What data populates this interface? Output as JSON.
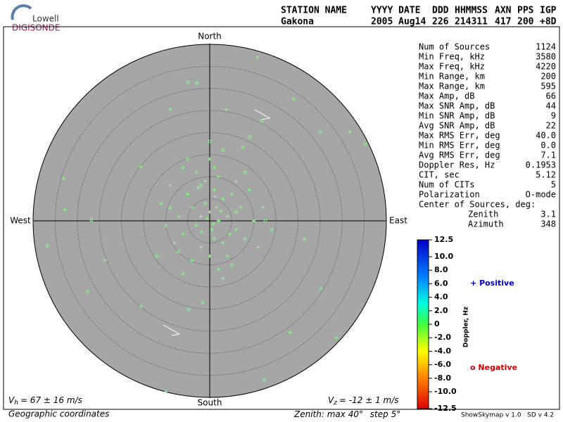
{
  "logo": {
    "top": "Lowell",
    "bottom": "DIGISONDE"
  },
  "header": {
    "labels": [
      "STATION NAME",
      "YYYY DATE",
      "DDD",
      "HHMMSS",
      "AXN",
      "PPS",
      "IGP"
    ],
    "values": [
      "Gakona",
      "2005 Aug14",
      "226",
      "214311",
      "417",
      "200",
      "+8D"
    ]
  },
  "compass": {
    "north": "North",
    "south": "South",
    "west": "West",
    "east": "East"
  },
  "stats": {
    "rows": [
      [
        "Num of Sources",
        "1124"
      ],
      [
        "Min Freq, kHz",
        "3580"
      ],
      [
        "Max Freq, kHz",
        "4220"
      ],
      [
        "Min Range, km",
        "200"
      ],
      [
        "Max Range, km",
        "595"
      ],
      [
        "Max Amp, dB",
        "66"
      ],
      [
        "Max SNR Amp, dB",
        "44"
      ],
      [
        "Min SNR Amp, dB",
        "9"
      ],
      [
        "Avg SNR Amp, dB",
        "22"
      ],
      [
        "Max RMS Err, deg",
        "40.0"
      ],
      [
        "Min RMS Err, deg",
        "0.0"
      ],
      [
        "Avg RMS Err, deg",
        "7.1"
      ],
      [
        "Doppler Res, Hz",
        "0.1953"
      ],
      [
        "CIT, sec",
        "5.12"
      ],
      [
        "Num of CITs",
        "5"
      ],
      [
        "Polarization",
        "O-mode"
      ]
    ],
    "center_title": "Center of Sources, deg:",
    "center_rows": [
      [
        "Zenith",
        "3.1"
      ],
      [
        "Azimuth",
        "348"
      ]
    ]
  },
  "colorbar": {
    "title": "Doppler, Hz",
    "ticks": [
      12.5,
      {
        "value": 10,
        "label": "10.0"
      },
      {
        "value": 8,
        "label": "8.0"
      },
      {
        "value": 6,
        "label": "6.0"
      },
      {
        "value": 4,
        "label": "4.0"
      },
      {
        "value": 2,
        "label": "2.0"
      },
      0,
      {
        "value": -2,
        "label": "-2.0"
      },
      {
        "value": -4,
        "label": "-4.0"
      },
      {
        "value": -6,
        "label": "-6.0"
      },
      {
        "value": -8,
        "label": "-8.0"
      },
      {
        "value": -10,
        "label": "-10.0"
      },
      -12.5
    ]
  },
  "legend": {
    "positive": "Positive",
    "negative": "Negative",
    "positive_symbol": "+",
    "negative_symbol": "o"
  },
  "footer": {
    "vh": {
      "symbol": "V",
      "sub": "h",
      "text": "= 67 ± 16 m/s"
    },
    "vz": {
      "symbol": "V",
      "sub": "z",
      "text": "= -12 ± 1 m/s"
    },
    "coords": "Geographic coordinates",
    "zenith": {
      "prefix": "Zenith: max",
      "max": 40,
      "unit": "°",
      "step_prefix": "step",
      "step": 5
    },
    "version": "ShowSkymap v 1.0   SD v 4.2"
  },
  "skymap": {
    "point_color": "#86ff86",
    "positive": [
      [
        0,
        2
      ],
      [
        1.5,
        3
      ],
      [
        -1,
        4
      ],
      [
        2,
        0
      ],
      [
        -2,
        1
      ],
      [
        3,
        5
      ],
      [
        -3,
        -1
      ],
      [
        0.5,
        -2
      ],
      [
        4,
        1
      ],
      [
        -4,
        3
      ],
      [
        1,
        7
      ],
      [
        -1,
        9
      ],
      [
        2,
        10
      ],
      [
        5,
        6
      ],
      [
        -5,
        6
      ],
      [
        6,
        -2
      ],
      [
        -6,
        -3
      ],
      [
        3,
        -5
      ],
      [
        -2,
        -6
      ],
      [
        0,
        -8
      ],
      [
        7,
        3
      ],
      [
        -7,
        1
      ],
      [
        8,
        -4
      ],
      [
        -8,
        -5
      ],
      [
        1,
        12
      ],
      [
        4,
        -8
      ],
      [
        -3,
        11
      ],
      [
        9,
        7
      ],
      [
        -9,
        8
      ],
      [
        10,
        0
      ],
      [
        -10,
        -1
      ],
      [
        2,
        -11
      ],
      [
        -4,
        -9
      ],
      [
        6,
        9
      ],
      [
        11,
        -6
      ],
      [
        -11,
        4
      ],
      [
        0,
        14
      ],
      [
        3,
        -13
      ],
      [
        -6,
        12
      ],
      [
        12,
        3
      ],
      [
        -0.5,
        0.5
      ],
      [
        0.8,
        -0.7
      ],
      [
        -1.8,
        -2.5
      ],
      [
        2.5,
        2.2
      ],
      [
        1.2,
        5.5
      ],
      [
        -2.6,
        7.5
      ],
      [
        4.5,
        -3
      ],
      [
        10.8,
        37.1
      ],
      [
        3.7,
        25.2
      ],
      [
        31.7,
        20.2
      ],
      [
        -33.1,
        9.6
      ],
      [
        -32.8,
        2.5
      ],
      [
        -27.6,
        -16.1
      ],
      [
        -23.7,
        -8.9
      ],
      [
        -15.5,
        -19.3
      ],
      [
        -1.6,
        -18.5
      ],
      [
        -9.9,
        -38.7
      ],
      [
        18.2,
        -25.3
      ],
      [
        28.7,
        -26.5
      ],
      [
        25.2,
        -15.3
      ],
      [
        21.4,
        -4.1
      ],
      [
        -15.6,
        12.3
      ]
    ],
    "negative": [
      [
        -4.9,
        31.4
      ],
      [
        -2.9,
        31.2
      ],
      [
        -8.9,
        25.3
      ],
      [
        19,
        27.6
      ],
      [
        25,
        20.2
      ],
      [
        35.2,
        17.4
      ],
      [
        -36.8,
        -5.7
      ],
      [
        -4.8,
        -20.1
      ],
      [
        12.3,
        -36
      ],
      [
        -26.8,
        0.2
      ],
      [
        12.6,
        0
      ],
      [
        9.1,
        19
      ],
      [
        7.5,
        16.7
      ],
      [
        11.8,
        22.6
      ],
      [
        -5,
        14
      ],
      [
        3,
        16
      ],
      [
        -7,
        -7
      ],
      [
        5,
        -10
      ],
      [
        8,
        11
      ],
      [
        -9,
        3
      ],
      [
        1,
        -4
      ],
      [
        -2,
        8
      ],
      [
        6,
        2
      ],
      [
        -12,
        -8
      ],
      [
        14,
        -2
      ],
      [
        0,
        18
      ],
      [
        -6,
        -12
      ]
    ]
  }
}
